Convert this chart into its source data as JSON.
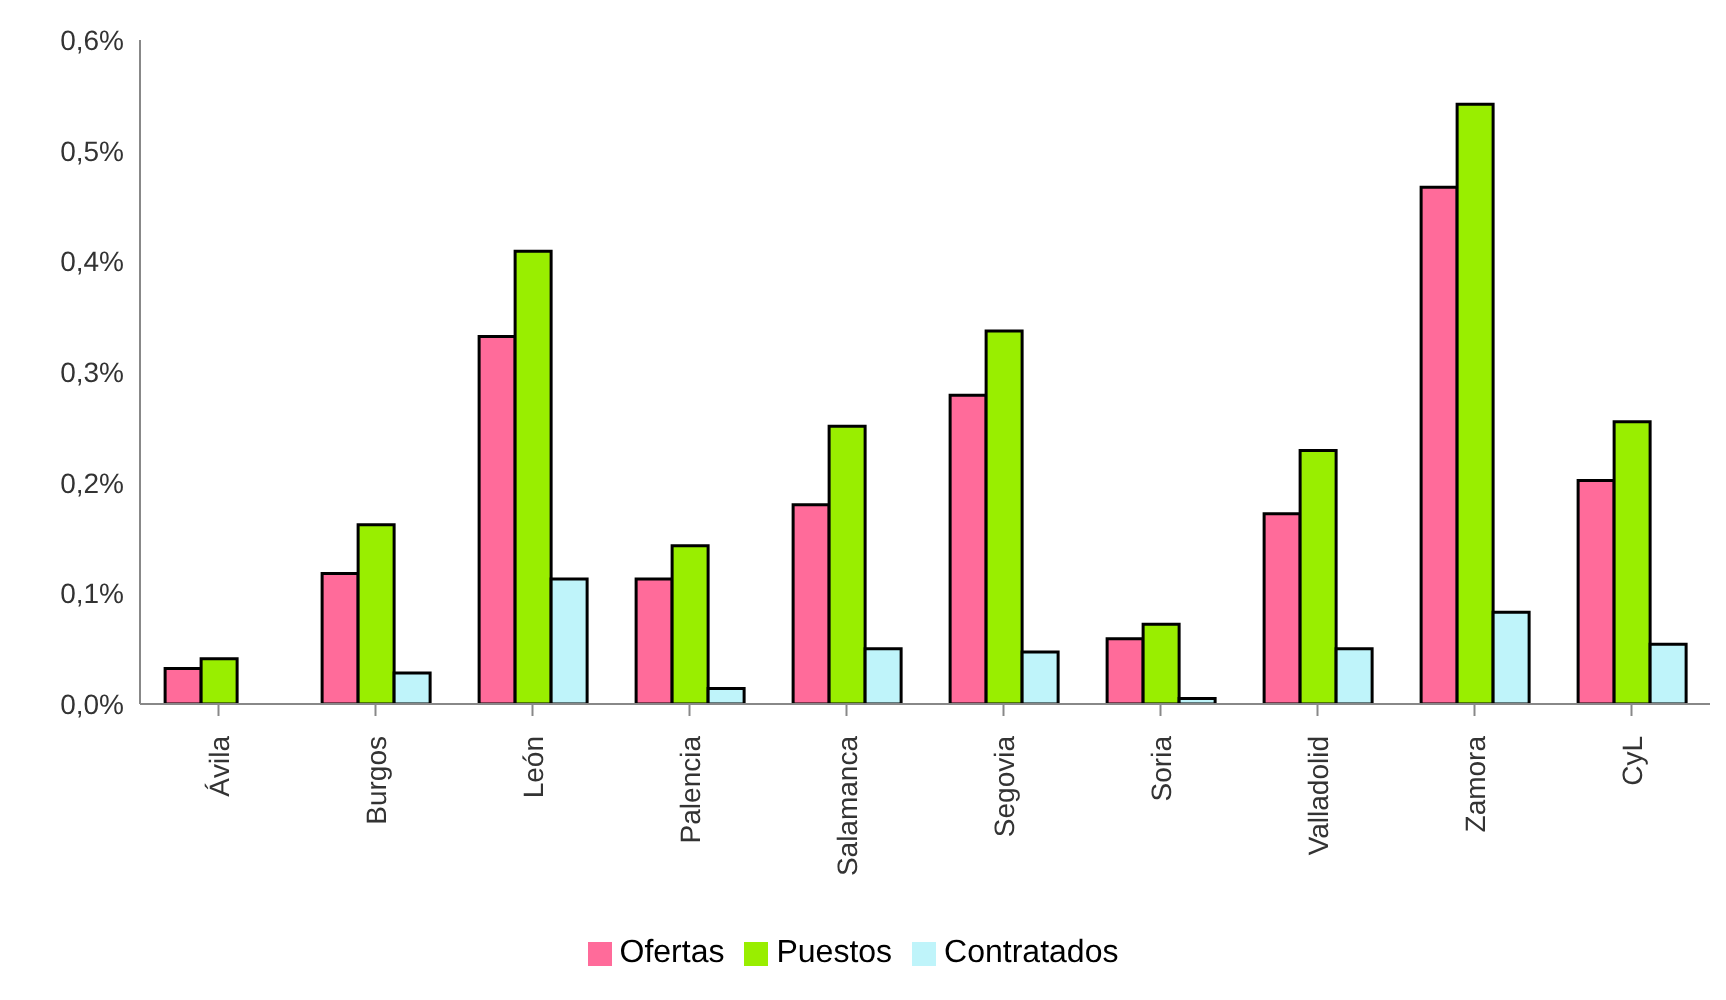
{
  "chart_data": {
    "type": "bar",
    "categories": [
      "Ávila",
      "Burgos",
      "León",
      "Palencia",
      "Salamanca",
      "Segovia",
      "Soria",
      "Valladolid",
      "Zamora",
      "CyL"
    ],
    "series": [
      {
        "name": "Ofertas",
        "color": "#ff6b9a",
        "values": [
          0.032,
          0.118,
          0.332,
          0.113,
          0.18,
          0.279,
          0.059,
          0.172,
          0.467,
          0.202
        ]
      },
      {
        "name": "Puestos",
        "color": "#99ee00",
        "values": [
          0.041,
          0.162,
          0.409,
          0.143,
          0.251,
          0.337,
          0.072,
          0.229,
          0.542,
          0.255
        ]
      },
      {
        "name": "Contratados",
        "color": "#bff4fa",
        "values": [
          0.0,
          0.028,
          0.113,
          0.014,
          0.05,
          0.047,
          0.005,
          0.05,
          0.083,
          0.054
        ]
      }
    ],
    "ylim": [
      0,
      0.6
    ],
    "yticks": [
      {
        "value": 0,
        "label": "0,0%"
      },
      {
        "value": 0.1,
        "label": "0,1%"
      },
      {
        "value": 0.2,
        "label": "0,2%"
      },
      {
        "value": 0.3,
        "label": "0,3%"
      },
      {
        "value": 0.4,
        "label": "0,4%"
      },
      {
        "value": 0.5,
        "label": "0,5%"
      },
      {
        "value": 0.6,
        "label": "0,6%"
      }
    ],
    "grid": false,
    "legend": "bottom"
  }
}
